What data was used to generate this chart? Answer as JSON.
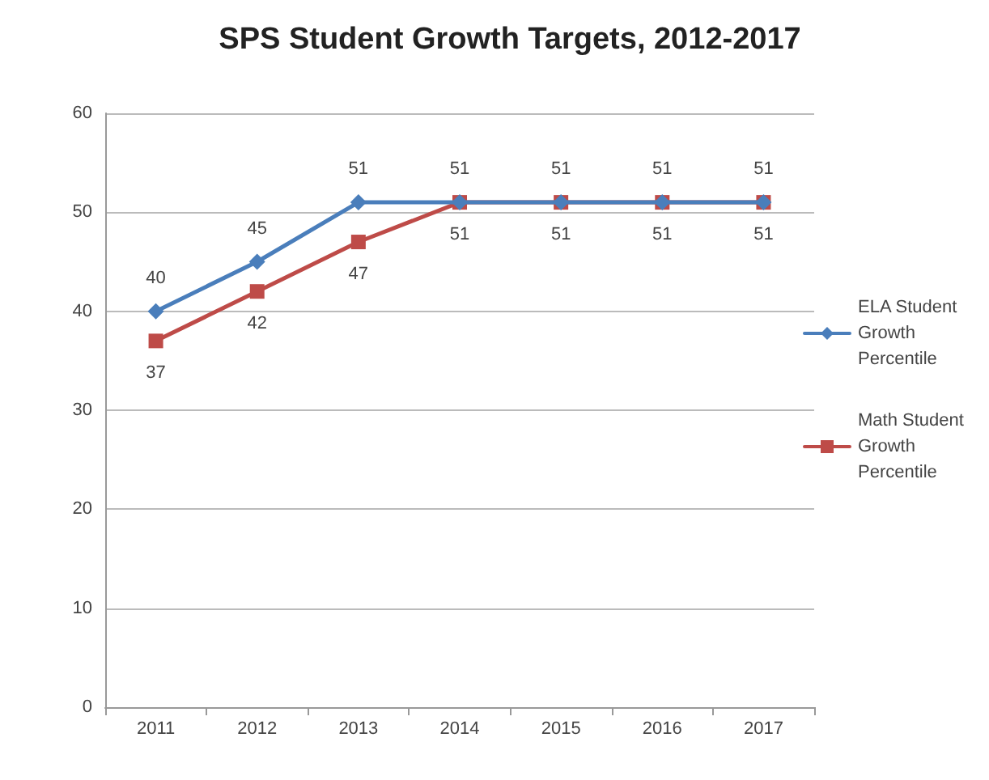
{
  "chart_data": {
    "type": "line",
    "title": "SPS Student Growth Targets, 2012-2017",
    "categories": [
      "2011",
      "2012",
      "2013",
      "2014",
      "2015",
      "2016",
      "2017"
    ],
    "series": [
      {
        "name": "ELA Student Growth Percentile",
        "color": "#4a7ebb",
        "marker": "diamond",
        "values": [
          40,
          45,
          51,
          51,
          51,
          51,
          51
        ]
      },
      {
        "name": "Math Student Growth Percentile",
        "color": "#be4b48",
        "marker": "square",
        "values": [
          37,
          42,
          47,
          51,
          51,
          51,
          51
        ]
      }
    ],
    "ylim": [
      0,
      60
    ],
    "yticks": [
      0,
      10,
      20,
      30,
      40,
      50,
      60
    ],
    "grid": "y",
    "legend": "right",
    "data_labels": true
  }
}
